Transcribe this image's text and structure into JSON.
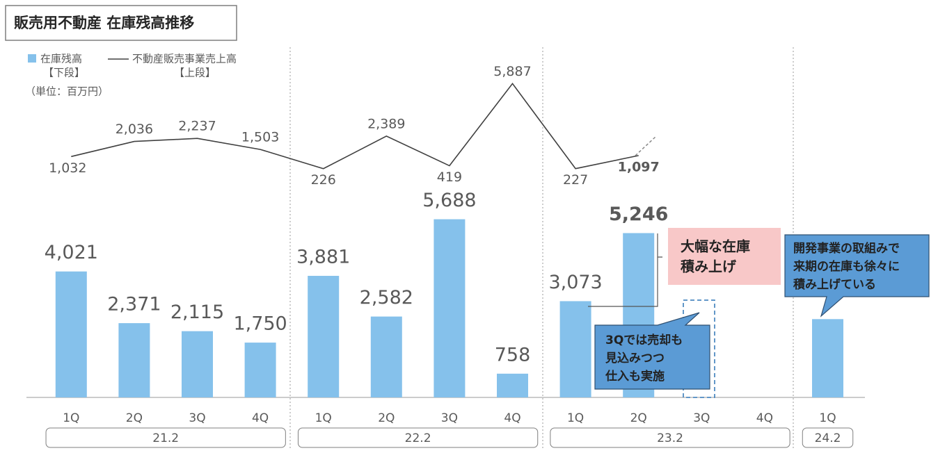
{
  "chart_data": {
    "type": "bar",
    "title": "販売用不動産 在庫残高推移",
    "unit_note": "（単位：百万円）",
    "groups": [
      {
        "label": "21.2",
        "categories": [
          "1Q",
          "2Q",
          "3Q",
          "4Q"
        ]
      },
      {
        "label": "22.2",
        "categories": [
          "1Q",
          "2Q",
          "3Q",
          "4Q"
        ]
      },
      {
        "label": "23.2",
        "categories": [
          "1Q",
          "2Q",
          "3Q",
          "4Q"
        ]
      },
      {
        "label": "24.2",
        "categories": [
          "1Q"
        ]
      }
    ],
    "series": [
      {
        "name": "在庫残高",
        "legend_note": "【下段】",
        "type": "bar",
        "color": "#85c1eb",
        "values": [
          4021,
          2371,
          2115,
          1750,
          3881,
          2582,
          5688,
          758,
          3073,
          5246,
          null,
          null,
          2500
        ],
        "value_labels": [
          "4,021",
          "2,371",
          "2,115",
          "1,750",
          "3,881",
          "2,582",
          "5,688",
          "758",
          "3,073",
          "5,246",
          null,
          null,
          null
        ]
      },
      {
        "name": "不動産販売事業売上高",
        "legend_note": "【上段】",
        "type": "line",
        "axis": "y2",
        "color": "#404040",
        "values": [
          1032,
          2036,
          2237,
          1503,
          226,
          2389,
          419,
          5887,
          227,
          1097,
          null,
          null,
          null
        ],
        "value_labels": [
          "1,032",
          "2,036",
          "2,237",
          "1,503",
          "226",
          "2,389",
          "419",
          "5,887",
          "227",
          "1,097",
          null,
          null,
          null
        ]
      }
    ],
    "ylim": [
      0,
      11800
    ],
    "y2lim": [
      -15000,
      9600
    ],
    "annotations": [
      {
        "lines": [
          "大幅な在庫",
          "積み上げ"
        ]
      },
      {
        "lines": [
          "3Qでは売却も",
          "見込みつつ",
          "仕入も実施"
        ]
      },
      {
        "lines": [
          "開発事業の取組みで",
          "来期の在庫も徐々に",
          "積み上げている"
        ]
      }
    ]
  }
}
